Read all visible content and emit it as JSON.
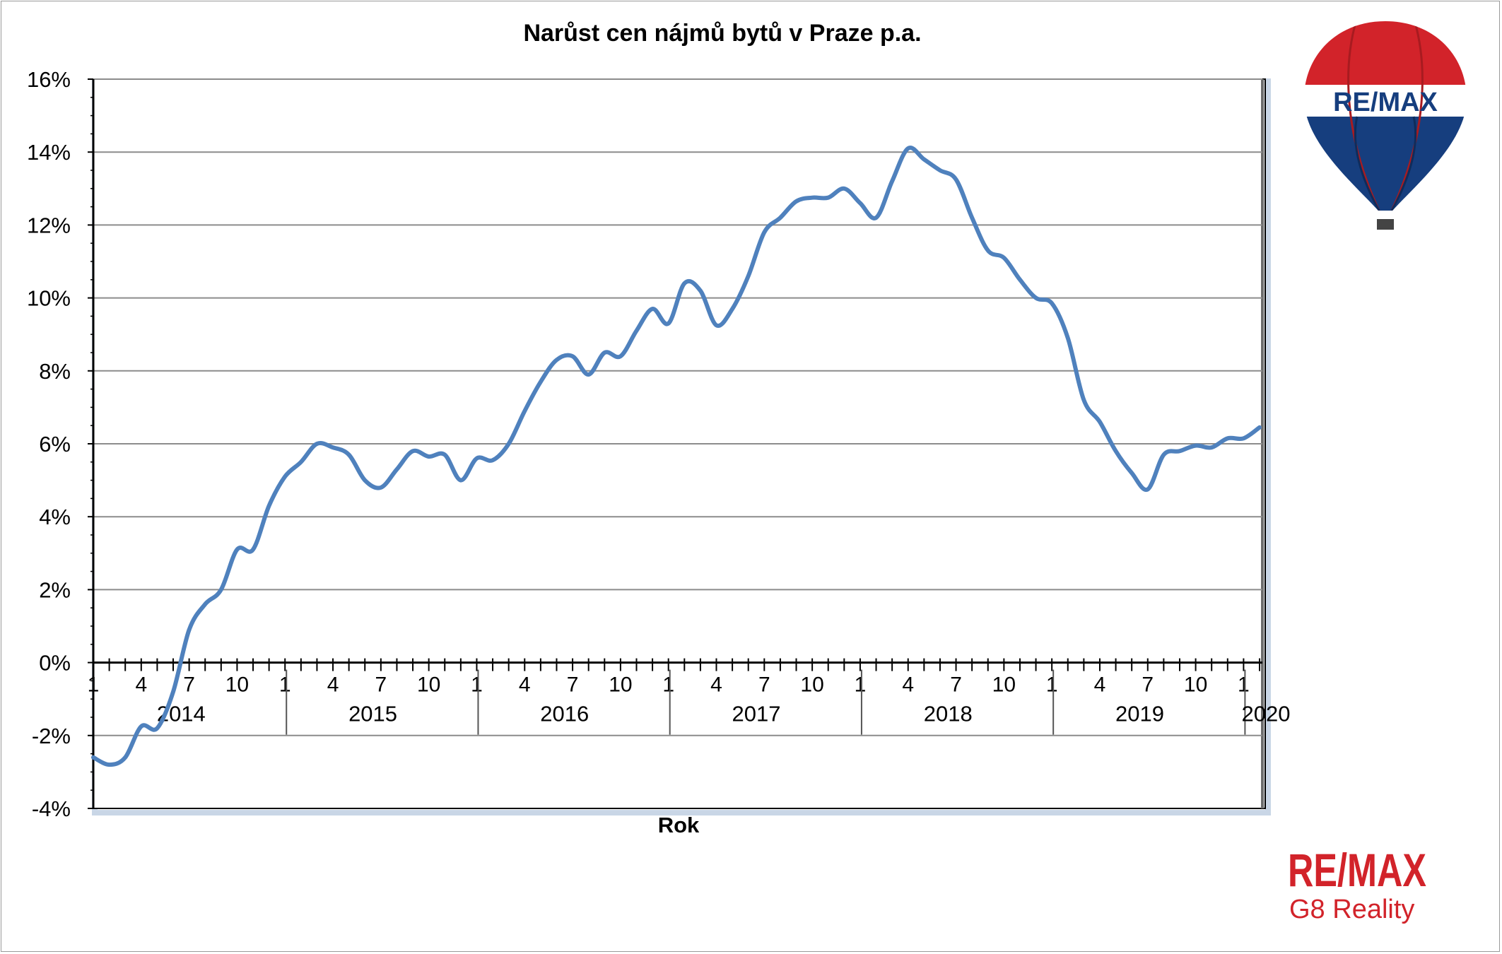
{
  "chart_data": {
    "type": "line",
    "title": "Narůst cen nájmů bytů v Praze p.a.",
    "xlabel": "Rok",
    "ylabel": "",
    "ylim": [
      -4,
      16
    ],
    "yticks": [
      "16%",
      "14%",
      "12%",
      "10%",
      "8%",
      "6%",
      "4%",
      "2%",
      "0%",
      "-2%",
      "-4%"
    ],
    "ytick_values": [
      16,
      14,
      12,
      10,
      8,
      6,
      4,
      2,
      0,
      -2,
      -4
    ],
    "x_start": "2014-01",
    "x_end": "2020-02",
    "month_tick_labels": [
      "1",
      "4",
      "7",
      "10"
    ],
    "years": [
      "2014",
      "2015",
      "2016",
      "2017",
      "2018",
      "2019",
      "2020"
    ],
    "grid": true,
    "legend": "none",
    "series": [
      {
        "color": "#4f81bd",
        "x": [
          "2014-01",
          "2014-02",
          "2014-03",
          "2014-04",
          "2014-05",
          "2014-06",
          "2014-07",
          "2014-08",
          "2014-09",
          "2014-10",
          "2014-11",
          "2014-12",
          "2015-01",
          "2015-02",
          "2015-03",
          "2015-04",
          "2015-05",
          "2015-06",
          "2015-07",
          "2015-08",
          "2015-09",
          "2015-10",
          "2015-11",
          "2015-12",
          "2016-01",
          "2016-02",
          "2016-03",
          "2016-04",
          "2016-05",
          "2016-06",
          "2016-07",
          "2016-08",
          "2016-09",
          "2016-10",
          "2016-11",
          "2016-12",
          "2017-01",
          "2017-02",
          "2017-03",
          "2017-04",
          "2017-05",
          "2017-06",
          "2017-07",
          "2017-08",
          "2017-09",
          "2017-10",
          "2017-11",
          "2017-12",
          "2018-01",
          "2018-02",
          "2018-03",
          "2018-04",
          "2018-05",
          "2018-06",
          "2018-07",
          "2018-08",
          "2018-09",
          "2018-10",
          "2018-11",
          "2018-12",
          "2019-01",
          "2019-02",
          "2019-03",
          "2019-04",
          "2019-05",
          "2019-06",
          "2019-07",
          "2019-08",
          "2019-09",
          "2019-10",
          "2019-11",
          "2019-12",
          "2020-01",
          "2020-02"
        ],
        "values": [
          -2.6,
          -2.8,
          -2.6,
          -1.75,
          -1.8,
          -0.8,
          0.9,
          1.6,
          2.0,
          3.1,
          3.1,
          4.3,
          5.1,
          5.5,
          6.0,
          5.9,
          5.7,
          5.0,
          4.8,
          5.3,
          5.8,
          5.65,
          5.7,
          5.0,
          5.6,
          5.55,
          6.0,
          6.9,
          7.7,
          8.3,
          8.4,
          7.9,
          8.5,
          8.4,
          9.1,
          9.7,
          9.3,
          10.4,
          10.2,
          9.25,
          9.7,
          10.6,
          11.8,
          12.2,
          12.65,
          12.75,
          12.75,
          13.0,
          12.6,
          12.2,
          13.2,
          14.1,
          13.8,
          13.5,
          13.25,
          12.2,
          11.3,
          11.1,
          10.5,
          10.0,
          9.85,
          8.9,
          7.2,
          6.6,
          5.8,
          5.2,
          4.75,
          5.7,
          5.8,
          5.95,
          5.9,
          6.15,
          6.15,
          6.45
        ]
      }
    ]
  },
  "branding": {
    "balloon_text": "RE/MAX",
    "logo_text": "RE/MAX",
    "subtitle": "G8 Reality",
    "colors": {
      "red": "#d2232a",
      "blue": "#163e7e",
      "line": "#4f81bd"
    }
  }
}
